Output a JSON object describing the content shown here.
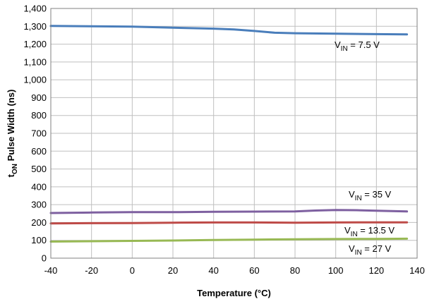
{
  "chart_data": {
    "type": "line",
    "xlabel": "Temperature (°C)",
    "ylabel": {
      "main": "t",
      "sub": "ON",
      "rest": " Pulse Width (ns)"
    },
    "xlim": [
      -40,
      140
    ],
    "ylim": [
      0,
      1400
    ],
    "xticks": [
      -40,
      -20,
      0,
      20,
      40,
      60,
      80,
      100,
      120,
      140
    ],
    "yticks": [
      0,
      100,
      200,
      300,
      400,
      500,
      600,
      700,
      800,
      900,
      1000,
      1100,
      1200,
      1300,
      1400
    ],
    "xtick_labels": [
      "-40",
      "-20",
      "0",
      "20",
      "40",
      "60",
      "80",
      "100",
      "120",
      "140"
    ],
    "ytick_labels": [
      "0",
      "100",
      "200",
      "300",
      "400",
      "500",
      "600",
      "700",
      "800",
      "900",
      "1,000",
      "1,100",
      "1,200",
      "1,300",
      "1,400"
    ],
    "grid": true,
    "series": [
      {
        "key": "vin-7-5",
        "name": "V_IN = 7.5 V",
        "label_main": "V",
        "label_sub": "IN",
        "label_rest": " = 7.5 V",
        "color": "#4a7ebb",
        "x": [
          -40,
          -20,
          0,
          20,
          40,
          50,
          60,
          70,
          80,
          100,
          120,
          135
        ],
        "y": [
          1302,
          1300,
          1298,
          1292,
          1287,
          1282,
          1274,
          1264,
          1261,
          1259,
          1256,
          1255
        ]
      },
      {
        "key": "vin-35",
        "name": "V_IN = 35 V",
        "label_main": "V",
        "label_sub": "IN",
        "label_rest": " = 35 V",
        "color": "#7e60a0",
        "x": [
          -40,
          -20,
          0,
          20,
          40,
          60,
          80,
          90,
          100,
          110,
          120,
          135
        ],
        "y": [
          253,
          256,
          258,
          258,
          260,
          261,
          262,
          267,
          270,
          269,
          266,
          262
        ]
      },
      {
        "key": "vin-13-5",
        "name": "V_IN = 13.5 V",
        "label_main": "V",
        "label_sub": "IN",
        "label_rest": " = 13.5 V",
        "color": "#be4b48",
        "x": [
          -40,
          -20,
          0,
          20,
          40,
          60,
          80,
          100,
          120,
          135
        ],
        "y": [
          195,
          196,
          197,
          199,
          200,
          200,
          199,
          200,
          201,
          201
        ]
      },
      {
        "key": "vin-27",
        "name": "V_IN = 27 V",
        "label_main": "V",
        "label_sub": "IN",
        "label_rest": " = 27 V",
        "color": "#98b954",
        "x": [
          -40,
          -20,
          0,
          20,
          40,
          60,
          80,
          100,
          120,
          135
        ],
        "y": [
          93,
          95,
          97,
          99,
          102,
          104,
          106,
          107,
          108,
          109
        ]
      }
    ]
  }
}
